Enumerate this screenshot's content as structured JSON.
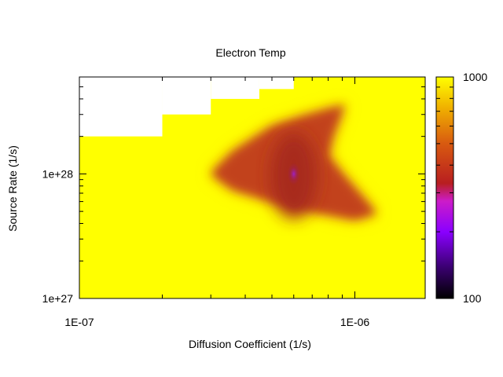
{
  "chart_data": {
    "type": "heatmap",
    "title": "Electron Temp",
    "xlabel": "Diffusion Coefficient (1/s)",
    "ylabel": "Source Rate (1/s)",
    "x_scale": "log",
    "y_scale": "log",
    "xlim": [
      1e-07,
      1.8e-06
    ],
    "ylim": [
      1e+27,
      6e+28
    ],
    "x_tick_labels": [
      {
        "value": 1e-07,
        "label": "1E-07"
      },
      {
        "value": 1e-06,
        "label": "1E-06"
      }
    ],
    "y_tick_labels": [
      {
        "value": 1e+27,
        "label": "1e+27"
      },
      {
        "value": 1e+28,
        "label": "1e+28"
      }
    ],
    "colorbar": {
      "range": [
        100,
        1000
      ],
      "scale": "log",
      "tick_labels": [
        {
          "value": 1000,
          "label": "1000"
        },
        {
          "value": 100,
          "label": "100"
        }
      ],
      "colors": [
        "#000000",
        "#5a00a8",
        "#9b00ff",
        "#cc1cc8",
        "#b8201c",
        "#dc6810",
        "#fff000"
      ]
    },
    "background_value": 1000,
    "no_data_region": [
      {
        "x_from": 1e-07,
        "x_to": 2e-07,
        "y_from": 2e+28,
        "y_to": 6e+28
      },
      {
        "x_from": 2e-07,
        "x_to": 3e-07,
        "y_from": 3e+28,
        "y_to": 6e+28
      },
      {
        "x_from": 3e-07,
        "x_to": 4.5e-07,
        "y_from": 4e+28,
        "y_to": 6e+28
      },
      {
        "x_from": 4.5e-07,
        "x_to": 6e-07,
        "y_from": 4.8e+28,
        "y_to": 6e+28
      }
    ],
    "features": [
      {
        "name": "cool-region",
        "polygon": [
          [
            3e-07,
            1e+28
          ],
          [
            3.6e-07,
            1.5e+28
          ],
          [
            5e-07,
            2.4e+28
          ],
          [
            6.5e-07,
            2.9e+28
          ],
          [
            9.2e-07,
            3.6e+28
          ],
          [
            8.3e-07,
            2e+28
          ],
          [
            8e-07,
            1.4e+28
          ],
          [
            9e-07,
            1e+28
          ],
          [
            1.1e-06,
            6e+27
          ],
          [
            1.2e-06,
            4.8e+27
          ],
          [
            1e-06,
            4.3e+27
          ],
          [
            7e-07,
            5e+27
          ],
          [
            5e-07,
            6e+27
          ],
          [
            3.6e-07,
            7.5e+27
          ]
        ],
        "value": 400
      },
      {
        "name": "core",
        "center": [
          6e-07,
          1e+28
        ],
        "value": 260
      }
    ]
  }
}
